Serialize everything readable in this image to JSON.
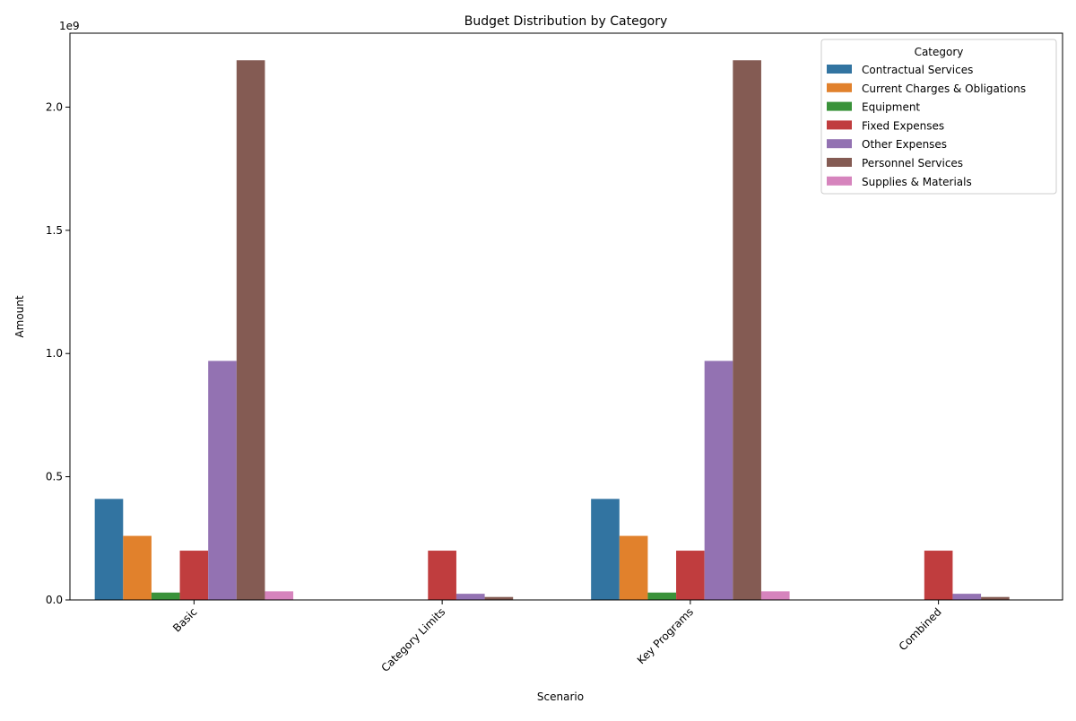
{
  "chart_data": {
    "type": "bar",
    "title": "Budget Distribution by Category",
    "xlabel": "Scenario",
    "ylabel": "Amount",
    "y_offset_label": "1e9",
    "ylim": [
      0,
      2.3
    ],
    "y_scale": 1000000000,
    "y_ticks": [
      0.0,
      0.5,
      1.0,
      1.5,
      2.0
    ],
    "y_tick_labels": [
      "0.0",
      "0.5",
      "1.0",
      "1.5",
      "2.0"
    ],
    "categories": [
      "Basic",
      "Category Limits",
      "Key Programs",
      "Combined"
    ],
    "legend": {
      "title": "Category",
      "placement": "top-right"
    },
    "grid": false,
    "series": [
      {
        "name": "Contractual Services",
        "color": "#3274a1",
        "values": [
          0.41,
          0.0,
          0.41,
          0.0
        ]
      },
      {
        "name": "Current Charges & Obligations",
        "color": "#e1812c",
        "values": [
          0.26,
          0.0,
          0.26,
          0.0
        ]
      },
      {
        "name": "Equipment",
        "color": "#3a923a",
        "values": [
          0.03,
          0.0,
          0.03,
          0.0
        ]
      },
      {
        "name": "Fixed Expenses",
        "color": "#c03d3e",
        "values": [
          0.2,
          0.2,
          0.2,
          0.2
        ]
      },
      {
        "name": "Other Expenses",
        "color": "#9372b2",
        "values": [
          0.97,
          0.025,
          0.97,
          0.025
        ]
      },
      {
        "name": "Personnel Services",
        "color": "#845b53",
        "values": [
          2.19,
          0.012,
          2.19,
          0.012
        ]
      },
      {
        "name": "Supplies & Materials",
        "color": "#d684bd",
        "values": [
          0.035,
          0.0,
          0.035,
          0.0
        ]
      }
    ]
  }
}
